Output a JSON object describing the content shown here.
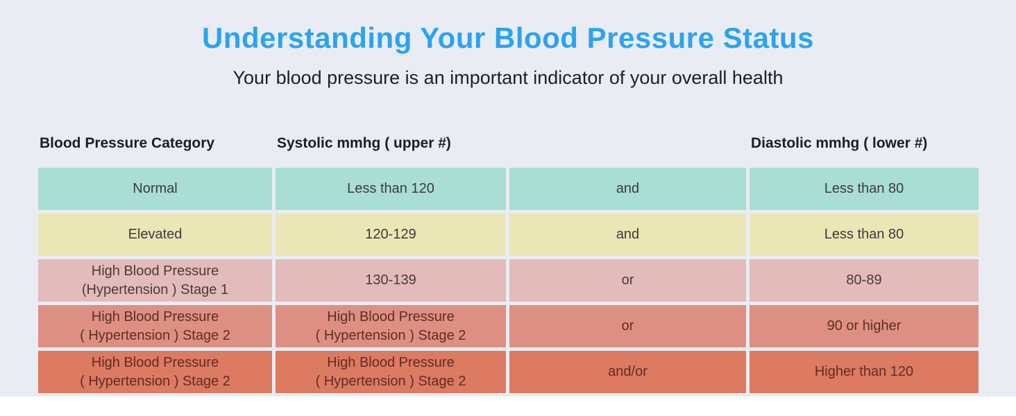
{
  "page": {
    "title": "Understanding Your Blood Pressure Status",
    "subtitle": "Your blood pressure is an important indicator of your overall health",
    "title_color": "#2ba3f2",
    "background_color": "#e9edf3",
    "gap_color": "#ffffff"
  },
  "chart_data": {
    "type": "table",
    "title": "Understanding Your Blood Pressure Status",
    "subtitle": "Your blood pressure is an important indicator of your overall health",
    "columns": {
      "category": "Blood Pressure Category",
      "systolic": "Systolic mmhg ( upper #)",
      "connector": "",
      "diastolic": "Diastolic mmhg ( lower #)"
    },
    "rows": [
      {
        "category": "Normal",
        "systolic": "Less than 120",
        "connector": "and",
        "diastolic": "Less than 80",
        "row_color": "#a9ded4",
        "text_color": "#3b3b3b"
      },
      {
        "category": "Elevated",
        "systolic": "120-129",
        "connector": "and",
        "diastolic": "Less than 80",
        "row_color": "#ebe6b5",
        "text_color": "#3b3b3b"
      },
      {
        "category": "High Blood Pressure\n(Hypertension ) Stage 1",
        "systolic": "130-139",
        "connector": "or",
        "diastolic": "80-89",
        "row_color": "#e2bbba",
        "text_color": "#4c3a39"
      },
      {
        "category": "High Blood Pressure\n( Hypertension ) Stage 2",
        "systolic": "High Blood Pressure\n( Hypertension ) Stage 2",
        "connector": "or",
        "diastolic": "90 or higher",
        "row_color": "#dd9082",
        "text_color": "#5f2d22"
      },
      {
        "category": "High Blood Pressure\n( Hypertension ) Stage 2",
        "systolic": "High Blood Pressure\n( Hypertension ) Stage 2",
        "connector": "and/or",
        "diastolic": "Higher than 120",
        "row_color": "#dc7a62",
        "text_color": "#5f2d22"
      }
    ]
  }
}
